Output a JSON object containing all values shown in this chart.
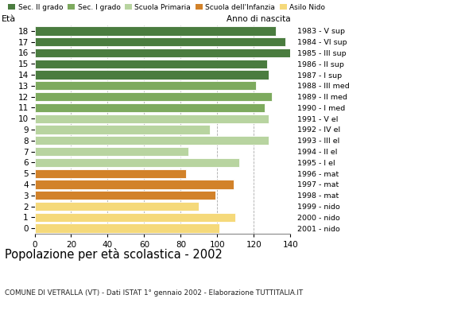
{
  "title": "Popolazione per età scolastica - 2002",
  "subtitle": "COMUNE DI VETRALLA (VT) - Dati ISTAT 1° gennaio 2002 - Elaborazione TUTTITALIA.IT",
  "xlabel_left": "Età",
  "xlabel_right": "Anno di nascita",
  "ages": [
    18,
    17,
    16,
    15,
    14,
    13,
    12,
    11,
    10,
    9,
    8,
    7,
    6,
    5,
    4,
    3,
    2,
    1,
    0
  ],
  "values": [
    132,
    137,
    140,
    127,
    128,
    121,
    130,
    126,
    128,
    96,
    128,
    84,
    112,
    83,
    109,
    99,
    90,
    110,
    101
  ],
  "year_labels": [
    "1983 - V sup",
    "1984 - VI sup",
    "1985 - III sup",
    "1986 - II sup",
    "1987 - I sup",
    "1988 - III med",
    "1989 - II med",
    "1990 - I med",
    "1991 - V el",
    "1992 - IV el",
    "1993 - III el",
    "1994 - II el",
    "1995 - I el",
    "1996 - mat",
    "1997 - mat",
    "1998 - mat",
    "1999 - nido",
    "2000 - nido",
    "2001 - nido"
  ],
  "colors": {
    "Sec. II grado": "#4a7c3f",
    "Sec. I grado": "#7daa5e",
    "Scuola Primaria": "#b8d4a0",
    "Scuola dell'Infanzia": "#d2822a",
    "Asilo Nido": "#f5d97a"
  },
  "category_per_age": {
    "18": "Sec. II grado",
    "17": "Sec. II grado",
    "16": "Sec. II grado",
    "15": "Sec. II grado",
    "14": "Sec. II grado",
    "13": "Sec. I grado",
    "12": "Sec. I grado",
    "11": "Sec. I grado",
    "10": "Scuola Primaria",
    "9": "Scuola Primaria",
    "8": "Scuola Primaria",
    "7": "Scuola Primaria",
    "6": "Scuola Primaria",
    "5": "Scuola dell'Infanzia",
    "4": "Scuola dell'Infanzia",
    "3": "Scuola dell'Infanzia",
    "2": "Asilo Nido",
    "1": "Asilo Nido",
    "0": "Asilo Nido"
  },
  "xlim": [
    0,
    140
  ],
  "xticks": [
    0,
    20,
    40,
    60,
    80,
    100,
    120,
    140
  ],
  "background_color": "#ffffff",
  "bar_height": 0.82,
  "grid_color": "#aaaaaa"
}
